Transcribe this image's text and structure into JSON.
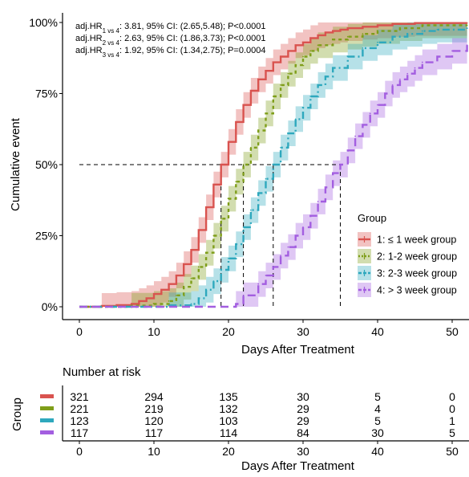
{
  "chart_data": [
    {
      "type": "line",
      "subtype": "cumulative-incidence-step",
      "xlabel": "Days After Treatment",
      "ylabel": "Cumulative event",
      "xlim": [
        -2,
        52
      ],
      "ylim": [
        0,
        1
      ],
      "x_ticks": [
        0,
        10,
        20,
        30,
        40,
        50
      ],
      "y_ticks": [
        0,
        0.25,
        0.5,
        0.75,
        1.0
      ],
      "y_tick_labels": [
        "0%",
        "25%",
        "50%",
        "75%",
        "100%"
      ],
      "grid": false,
      "annotations": [
        {
          "prefix": "adj.HR",
          "sub": "1 vs 4",
          "text": ": 3.81, 95% CI: (2.65,5.48); P<0.0001"
        },
        {
          "prefix": "adj.HR",
          "sub": "2 vs 4",
          "text": ": 2.63, 95% CI: (1.86,3.73); P<0.0001"
        },
        {
          "prefix": "adj.HR",
          "sub": "3 vs 4",
          "text": ": 1.92, 95% CI: (1.34,2.75); P=0.0004"
        }
      ],
      "legend": {
        "title": "Group",
        "placement": "right"
      },
      "median_lines": {
        "y": 0.5,
        "x": [
          19,
          22,
          26,
          35
        ]
      },
      "series": [
        {
          "name": "1: ≤ 1 week group",
          "color": "#d9534f",
          "dash": "solid",
          "x": [
            0,
            3,
            5,
            7,
            8,
            9,
            10,
            11,
            12,
            13,
            14,
            15,
            16,
            17,
            18,
            19,
            20,
            21,
            22,
            23,
            24,
            25,
            26,
            27,
            28,
            29,
            30,
            31,
            32,
            33,
            34,
            35,
            36,
            38,
            40,
            42,
            45,
            52
          ],
          "y": [
            0,
            0.003,
            0.006,
            0.01,
            0.02,
            0.03,
            0.045,
            0.06,
            0.08,
            0.11,
            0.15,
            0.2,
            0.27,
            0.35,
            0.43,
            0.5,
            0.58,
            0.65,
            0.71,
            0.76,
            0.8,
            0.83,
            0.86,
            0.88,
            0.9,
            0.92,
            0.93,
            0.945,
            0.955,
            0.965,
            0.97,
            0.975,
            0.98,
            0.985,
            0.99,
            0.995,
            0.998,
            0.998
          ]
        },
        {
          "name": "2: 1-2 week group",
          "color": "#7f9e1a",
          "dash": "dotted",
          "x": [
            0,
            7,
            10,
            12,
            13,
            14,
            15,
            16,
            17,
            18,
            19,
            20,
            21,
            22,
            23,
            24,
            25,
            26,
            27,
            28,
            29,
            30,
            31,
            32,
            34,
            36,
            38,
            40,
            43,
            46,
            52
          ],
          "y": [
            0,
            0.004,
            0.01,
            0.02,
            0.04,
            0.07,
            0.1,
            0.14,
            0.19,
            0.25,
            0.31,
            0.38,
            0.44,
            0.5,
            0.56,
            0.62,
            0.68,
            0.74,
            0.78,
            0.82,
            0.85,
            0.88,
            0.9,
            0.92,
            0.94,
            0.95,
            0.96,
            0.97,
            0.98,
            0.99,
            0.99
          ]
        },
        {
          "name": "3: 2-3 week group",
          "color": "#2ea8bd",
          "dash": "dashdot",
          "x": [
            0,
            12,
            15,
            16,
            17,
            18,
            19,
            20,
            21,
            22,
            23,
            24,
            25,
            26,
            27,
            28,
            29,
            30,
            31,
            32,
            33,
            34,
            36,
            38,
            40,
            42,
            44,
            46,
            48,
            52
          ],
          "y": [
            0,
            0.005,
            0.01,
            0.03,
            0.06,
            0.09,
            0.13,
            0.17,
            0.22,
            0.28,
            0.34,
            0.4,
            0.45,
            0.5,
            0.56,
            0.61,
            0.66,
            0.7,
            0.74,
            0.78,
            0.81,
            0.84,
            0.88,
            0.91,
            0.93,
            0.95,
            0.96,
            0.97,
            0.975,
            0.98
          ]
        },
        {
          "name": "4: > 3 week group",
          "color": "#a35ee0",
          "dash": "dashed",
          "x": [
            0,
            21,
            22,
            24,
            25,
            26,
            27,
            28,
            29,
            30,
            31,
            32,
            33,
            34,
            35,
            36,
            37,
            38,
            39,
            40,
            41,
            42,
            43,
            44,
            45,
            46,
            48,
            50,
            52
          ],
          "y": [
            0,
            0.01,
            0.04,
            0.08,
            0.11,
            0.14,
            0.18,
            0.21,
            0.25,
            0.28,
            0.32,
            0.37,
            0.42,
            0.47,
            0.5,
            0.55,
            0.6,
            0.64,
            0.68,
            0.71,
            0.75,
            0.78,
            0.8,
            0.82,
            0.84,
            0.86,
            0.88,
            0.9,
            0.92
          ]
        }
      ]
    },
    {
      "type": "table",
      "title": "Number at risk",
      "row_axis_label": "Group",
      "xlabel": "Days After Treatment",
      "x_ticks": [
        0,
        10,
        20,
        30,
        40,
        50
      ],
      "rows": [
        {
          "color": "#d9534f",
          "values": [
            321,
            294,
            135,
            30,
            5,
            0
          ]
        },
        {
          "color": "#7f9e1a",
          "values": [
            221,
            219,
            132,
            29,
            4,
            0
          ]
        },
        {
          "color": "#2ea8bd",
          "values": [
            123,
            120,
            103,
            29,
            5,
            1
          ]
        },
        {
          "color": "#a35ee0",
          "values": [
            117,
            117,
            114,
            84,
            30,
            5
          ]
        }
      ]
    }
  ]
}
